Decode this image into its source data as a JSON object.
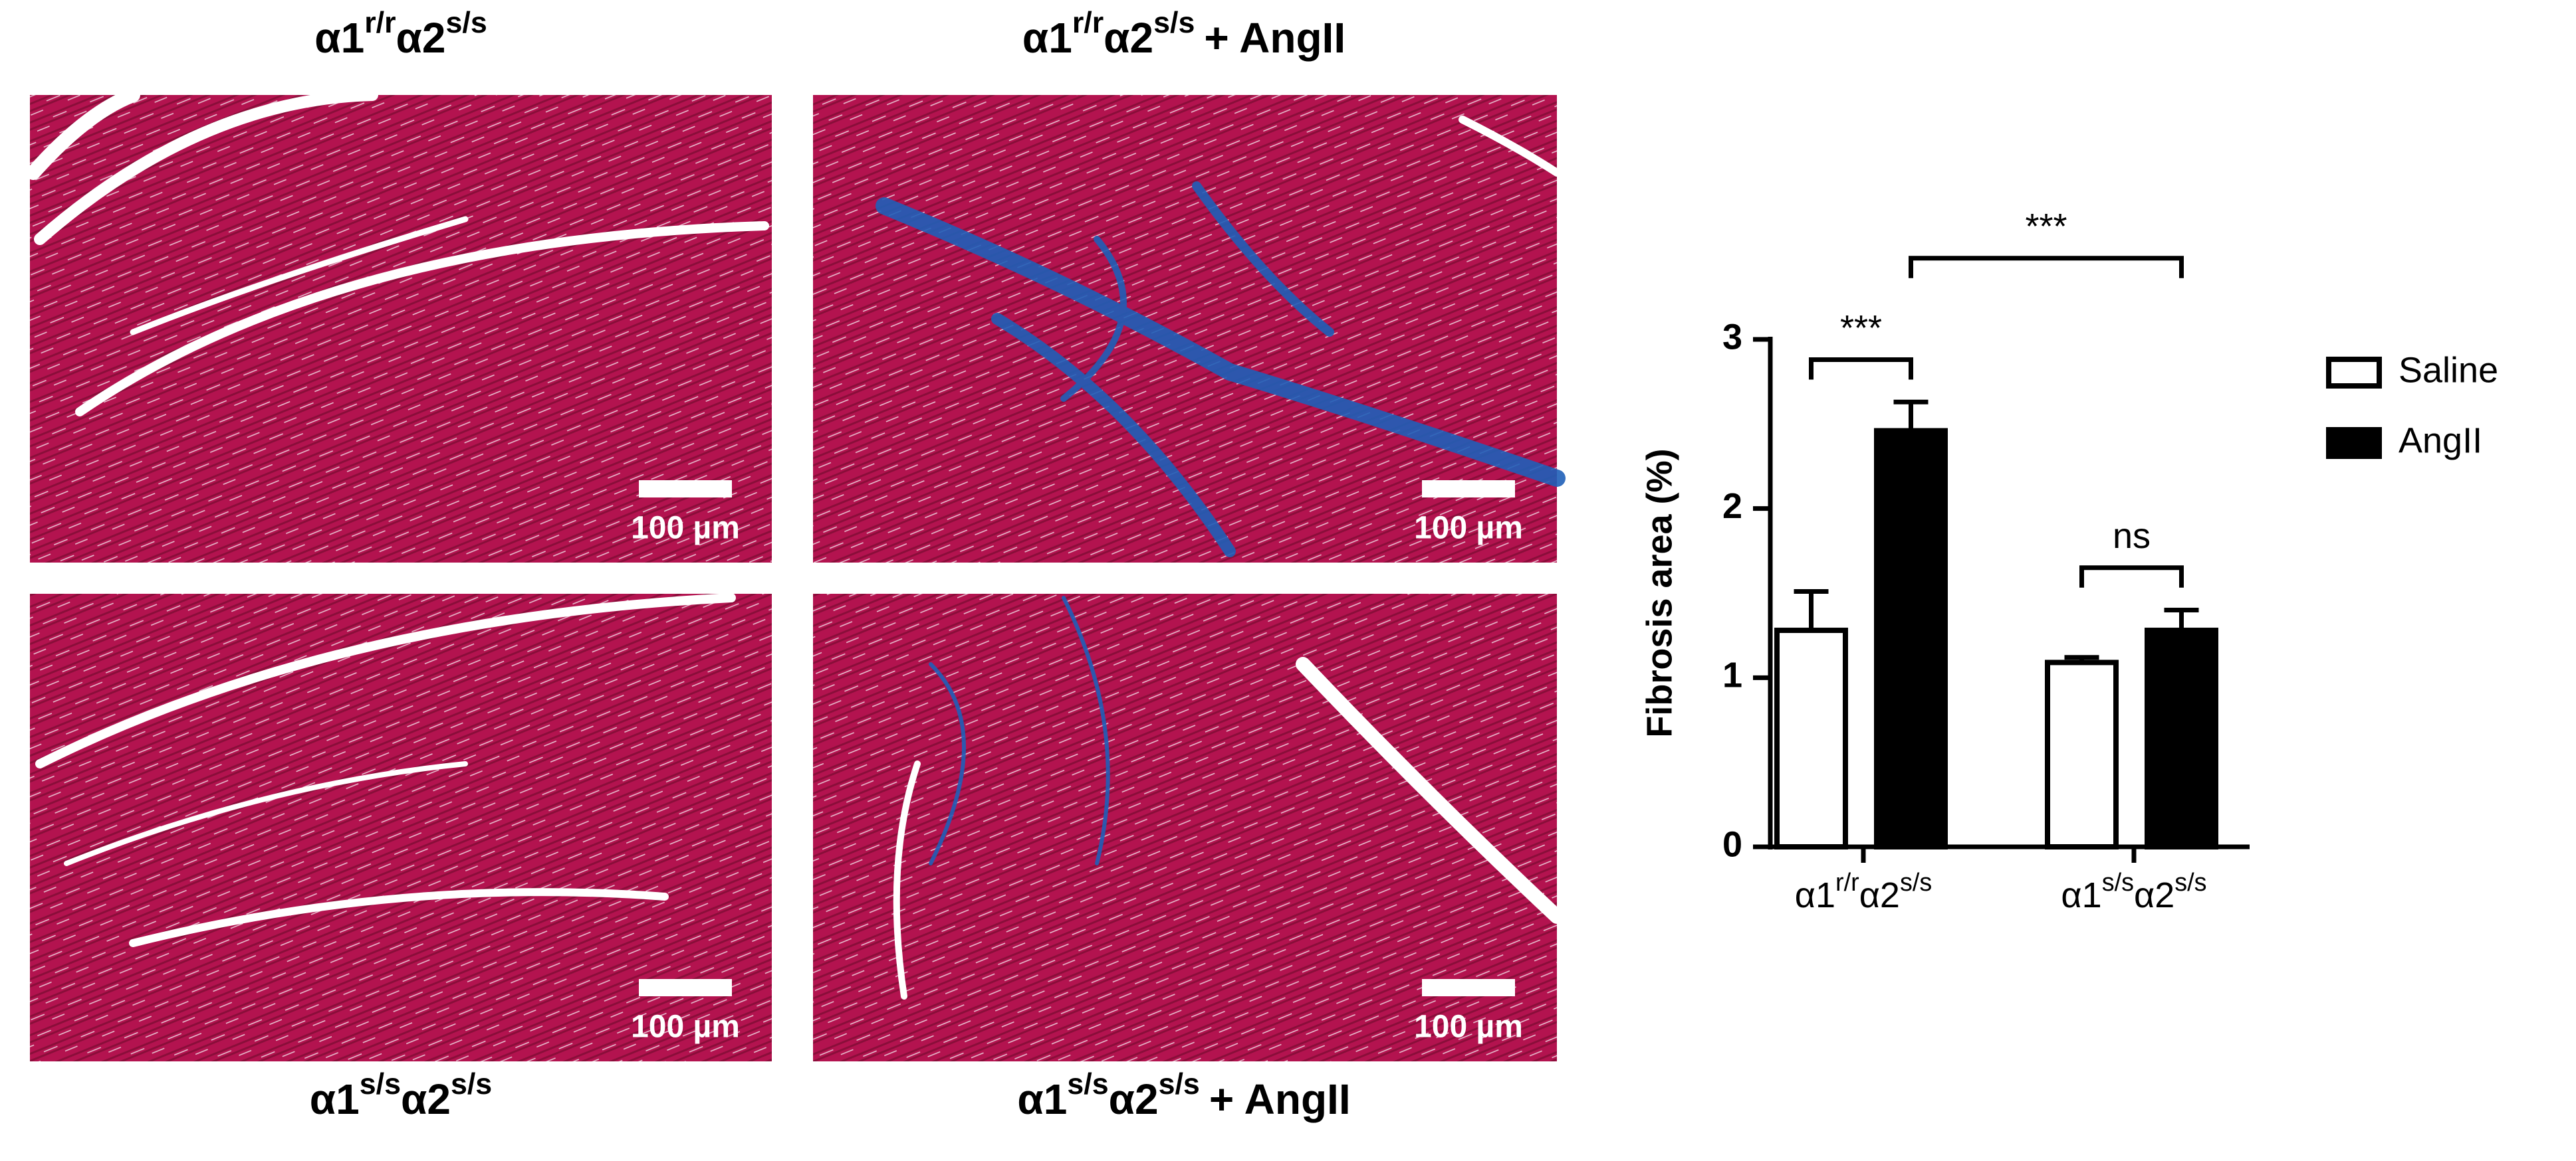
{
  "panels": [
    {
      "title": [
        {
          "text": "α1",
          "sup": "r/r"
        },
        {
          "text": "α2",
          "sup": "s/s"
        }
      ],
      "scale_bar": "100 µm"
    },
    {
      "title": [
        {
          "text": "α1",
          "sup": "r/r"
        },
        {
          "text": "α2",
          "sup": "s/s"
        },
        {
          "text": "+ AngII"
        }
      ],
      "scale_bar": "100 µm"
    },
    {
      "title": [
        {
          "text": "α1",
          "sup": "s/s"
        },
        {
          "text": "α2",
          "sup": "s/s"
        }
      ],
      "scale_bar": "100 µm"
    },
    {
      "title": [
        {
          "text": "α1",
          "sup": "s/s"
        },
        {
          "text": "α2",
          "sup": "s/s"
        },
        {
          "text": "+ AngII"
        }
      ],
      "scale_bar": "100 µm"
    }
  ],
  "chart_data": {
    "type": "bar",
    "y_label": "Fibrosis area (%)",
    "categories": [
      [
        {
          "text": "α1",
          "sup": "r/r"
        },
        {
          "text": "α2",
          "sup": "s/s"
        }
      ],
      [
        {
          "text": "α1",
          "sup": "s/s"
        },
        {
          "text": "α2",
          "sup": "s/s"
        }
      ]
    ],
    "series": [
      {
        "name": "Saline",
        "color": "#ffffff",
        "values": [
          1.28,
          1.09
        ],
        "errors": [
          0.23,
          0.03
        ]
      },
      {
        "name": "AngII",
        "color": "#000000",
        "values": [
          2.46,
          1.28
        ],
        "errors": [
          0.17,
          0.12
        ]
      }
    ],
    "ylim": [
      0,
      3
    ],
    "yticks": [
      0,
      1,
      2,
      3
    ],
    "legend": "right",
    "annotations": [
      {
        "label": "***",
        "from": [
          0,
          0
        ],
        "to": [
          1,
          0
        ]
      },
      {
        "label": "ns",
        "from": [
          0,
          1
        ],
        "to": [
          1,
          1
        ]
      },
      {
        "label": "***",
        "from": [
          1,
          0
        ],
        "to": [
          1,
          1
        ]
      }
    ]
  }
}
